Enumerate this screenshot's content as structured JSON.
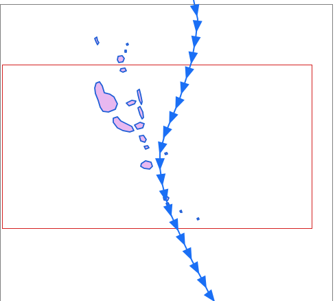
{
  "map": {
    "land_fill": "#e8b8f0",
    "land_stroke": "#1f5fd6",
    "track_color": "#1a6ff5",
    "box_color": "#d42020",
    "frame_color": "#808080",
    "track_arrow_count": 20
  }
}
